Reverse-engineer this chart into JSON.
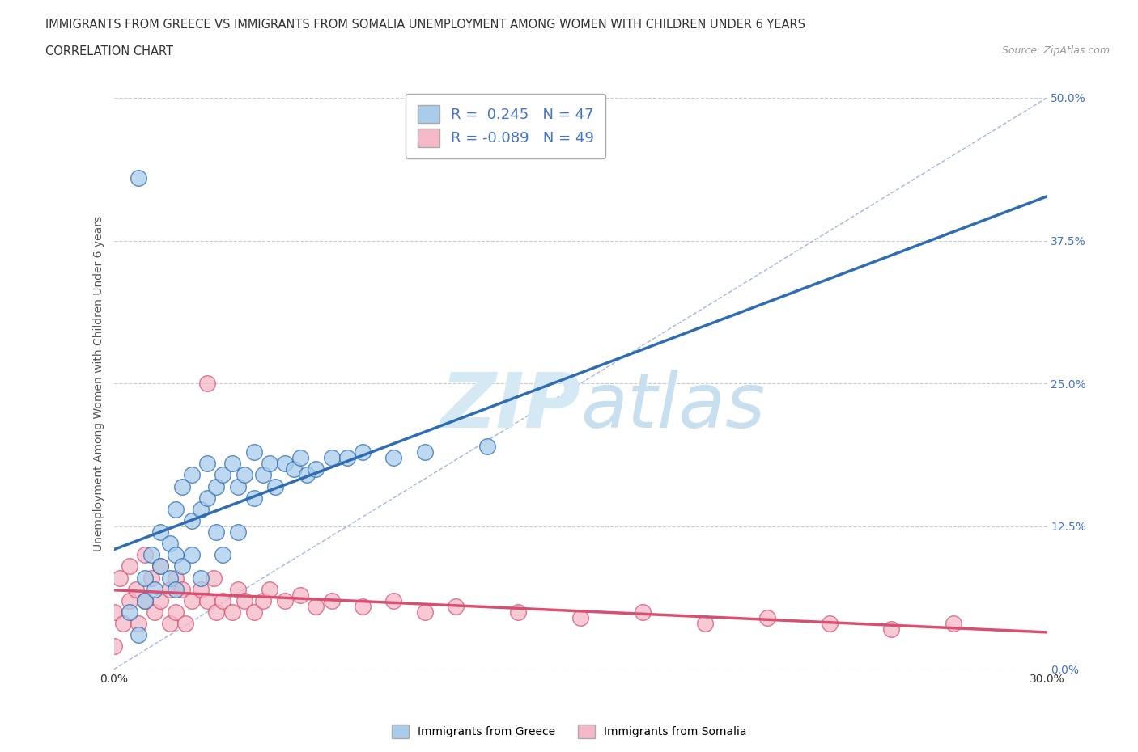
{
  "title_line1": "IMMIGRANTS FROM GREECE VS IMMIGRANTS FROM SOMALIA UNEMPLOYMENT AMONG WOMEN WITH CHILDREN UNDER 6 YEARS",
  "title_line2": "CORRELATION CHART",
  "source_text": "Source: ZipAtlas.com",
  "ylabel": "Unemployment Among Women with Children Under 6 years",
  "r_greece": 0.245,
  "n_greece": 47,
  "r_somalia": -0.089,
  "n_somalia": 49,
  "color_greece": "#A8CCEA",
  "color_somalia": "#F5B8C8",
  "line_color_greece": "#2E6DB4",
  "line_color_somalia": "#D94F70",
  "diagonal_color": "#A0B8E0",
  "watermark_color": "#D5E9F5",
  "xlim": [
    0.0,
    0.3
  ],
  "ylim": [
    0.0,
    0.5
  ],
  "ytick_values": [
    0.0,
    0.125,
    0.25,
    0.375,
    0.5
  ],
  "xtick_values": [
    0.0,
    0.3
  ],
  "greece_x": [
    0.005,
    0.008,
    0.01,
    0.01,
    0.012,
    0.013,
    0.015,
    0.015,
    0.018,
    0.018,
    0.02,
    0.02,
    0.02,
    0.022,
    0.022,
    0.025,
    0.025,
    0.025,
    0.028,
    0.028,
    0.03,
    0.03,
    0.033,
    0.033,
    0.035,
    0.035,
    0.038,
    0.04,
    0.04,
    0.042,
    0.045,
    0.045,
    0.048,
    0.05,
    0.052,
    0.055,
    0.058,
    0.06,
    0.062,
    0.065,
    0.07,
    0.075,
    0.08,
    0.09,
    0.1,
    0.12,
    0.008
  ],
  "greece_y": [
    0.05,
    0.03,
    0.08,
    0.06,
    0.1,
    0.07,
    0.09,
    0.12,
    0.08,
    0.11,
    0.14,
    0.1,
    0.07,
    0.16,
    0.09,
    0.13,
    0.17,
    0.1,
    0.14,
    0.08,
    0.15,
    0.18,
    0.16,
    0.12,
    0.17,
    0.1,
    0.18,
    0.16,
    0.12,
    0.17,
    0.19,
    0.15,
    0.17,
    0.18,
    0.16,
    0.18,
    0.175,
    0.185,
    0.17,
    0.175,
    0.185,
    0.185,
    0.19,
    0.185,
    0.19,
    0.195,
    0.43
  ],
  "somalia_x": [
    0.0,
    0.0,
    0.002,
    0.003,
    0.005,
    0.005,
    0.007,
    0.008,
    0.01,
    0.01,
    0.012,
    0.013,
    0.015,
    0.015,
    0.018,
    0.018,
    0.02,
    0.02,
    0.022,
    0.023,
    0.025,
    0.028,
    0.03,
    0.032,
    0.033,
    0.035,
    0.038,
    0.04,
    0.042,
    0.045,
    0.048,
    0.05,
    0.055,
    0.06,
    0.065,
    0.07,
    0.08,
    0.09,
    0.1,
    0.11,
    0.13,
    0.15,
    0.17,
    0.19,
    0.21,
    0.23,
    0.25,
    0.27,
    0.03
  ],
  "somalia_y": [
    0.05,
    0.02,
    0.08,
    0.04,
    0.09,
    0.06,
    0.07,
    0.04,
    0.1,
    0.06,
    0.08,
    0.05,
    0.09,
    0.06,
    0.07,
    0.04,
    0.08,
    0.05,
    0.07,
    0.04,
    0.06,
    0.07,
    0.06,
    0.08,
    0.05,
    0.06,
    0.05,
    0.07,
    0.06,
    0.05,
    0.06,
    0.07,
    0.06,
    0.065,
    0.055,
    0.06,
    0.055,
    0.06,
    0.05,
    0.055,
    0.05,
    0.045,
    0.05,
    0.04,
    0.045,
    0.04,
    0.035,
    0.04,
    0.25
  ],
  "title_fontsize": 10.5,
  "subtitle_fontsize": 10.5,
  "source_fontsize": 9,
  "axis_label_fontsize": 10,
  "tick_fontsize": 10,
  "legend_fontsize": 13
}
